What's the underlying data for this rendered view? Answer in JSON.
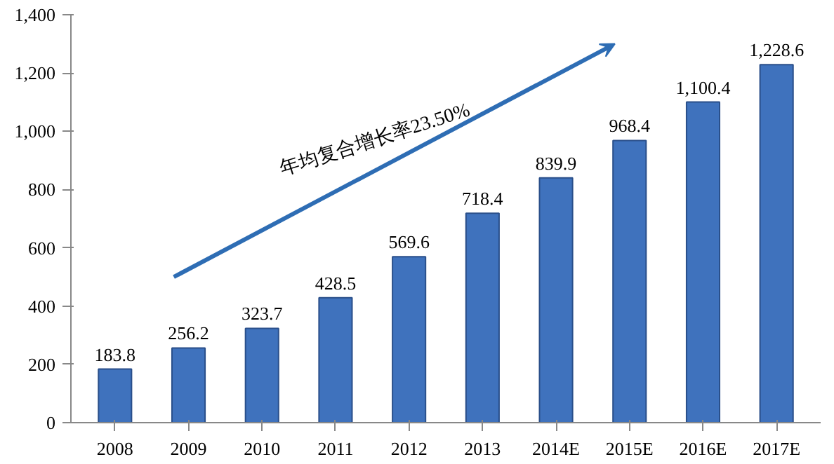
{
  "chart_data": {
    "type": "bar",
    "categories": [
      "2008",
      "2009",
      "2010",
      "2011",
      "2012",
      "2013",
      "2014E",
      "2015E",
      "2016E",
      "2017E"
    ],
    "values": [
      183.8,
      256.2,
      323.7,
      428.5,
      569.6,
      718.4,
      839.9,
      968.4,
      1100.4,
      1228.6
    ],
    "value_labels": [
      "183.8",
      "256.2",
      "323.7",
      "428.5",
      "569.6",
      "718.4",
      "839.9",
      "968.4",
      "1,100.4",
      "1,228.6"
    ],
    "color": "#3f72bd",
    "ylim": [
      0,
      1400
    ],
    "yticks": [
      0,
      200,
      400,
      600,
      800,
      {
        "value": 1000,
        "label": "1,000"
      },
      {
        "value": 1200,
        "label": "1,200"
      },
      {
        "value": 1400,
        "label": "1,400"
      }
    ],
    "grid": false,
    "annotations": [
      "年均复合增长率23.50%"
    ]
  }
}
